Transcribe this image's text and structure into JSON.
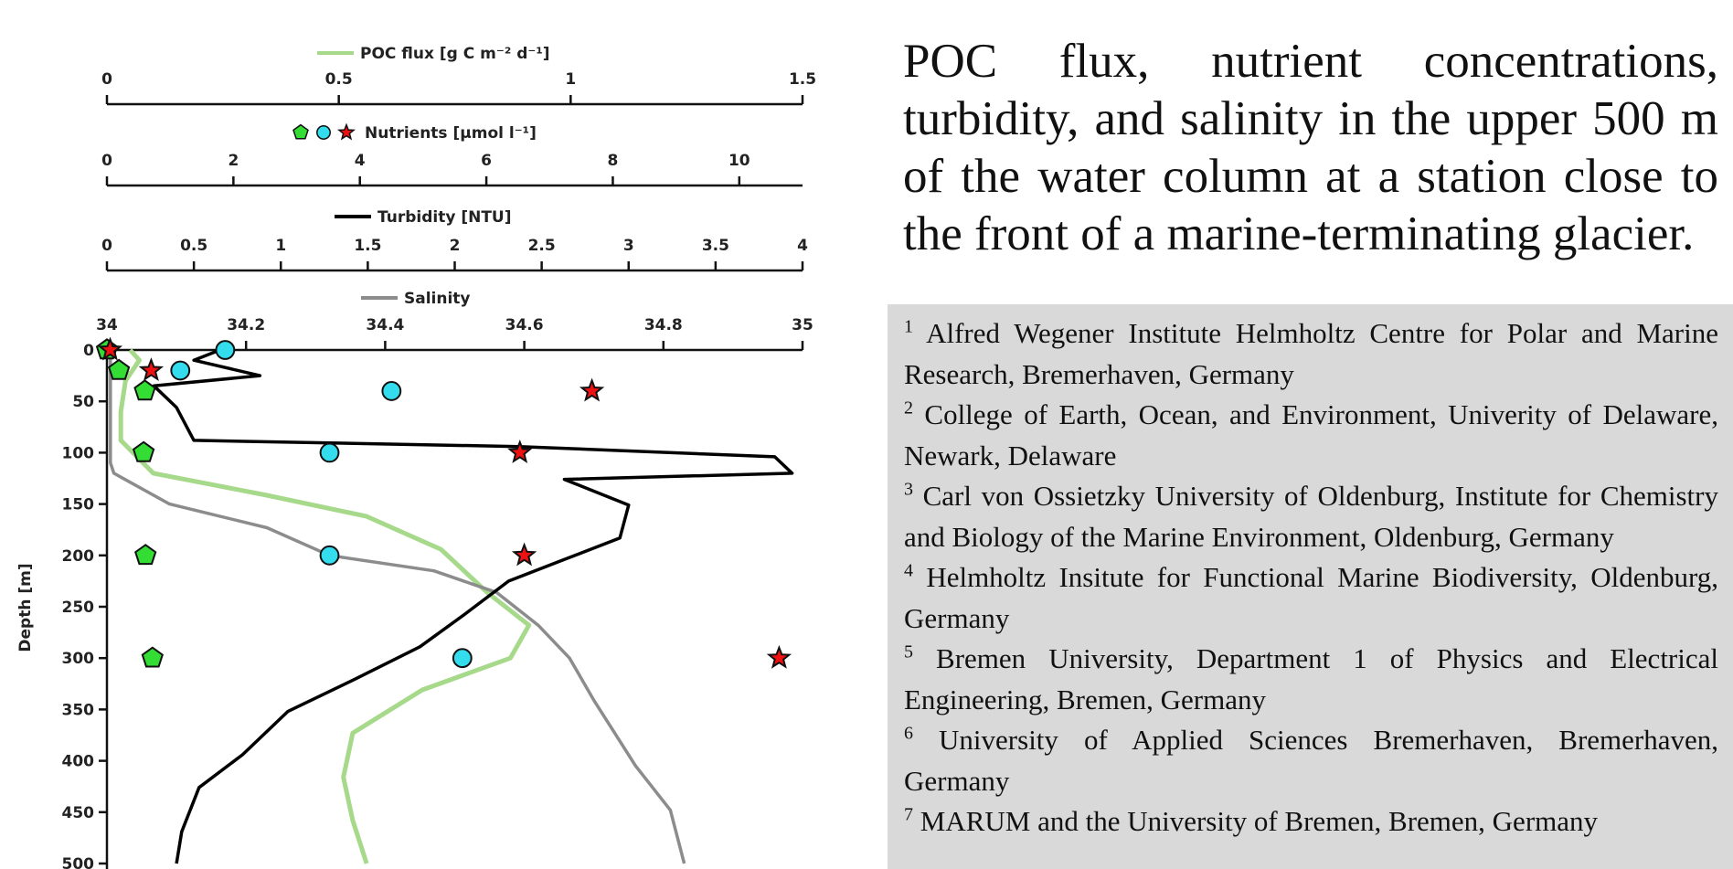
{
  "chart_data": {
    "type": "profile",
    "ylabel": "Depth [m]",
    "ylim": [
      0,
      500
    ],
    "yticks": [
      0,
      50,
      100,
      150,
      200,
      250,
      300,
      350,
      400,
      450,
      500
    ],
    "axes": [
      {
        "name": "POC flux [g C m⁻² d⁻¹]",
        "xlim": [
          0,
          1.5
        ],
        "xticks": [
          0,
          0.5,
          1,
          1.5
        ]
      },
      {
        "name": "Nutrients [µmol l⁻¹]",
        "xlim": [
          0,
          11
        ],
        "xticks": [
          0,
          2,
          4,
          6,
          8,
          10
        ]
      },
      {
        "name": "Turbidity [NTU]",
        "xlim": [
          0,
          4
        ],
        "xticks": [
          0,
          0.5,
          1,
          1.5,
          2,
          2.5,
          3,
          3.5,
          4
        ]
      },
      {
        "name": "Salinity",
        "xlim": [
          34,
          35
        ],
        "xticks": [
          34,
          34.2,
          34.4,
          34.6,
          34.8,
          35
        ]
      }
    ],
    "series": [
      {
        "axis": 0,
        "color": "#a6d98a",
        "depth": [
          0,
          10,
          30,
          60,
          88,
          120,
          141,
          162,
          194,
          236,
          268,
          300,
          331,
          373,
          416,
          458,
          500
        ],
        "values": [
          0.05,
          0.07,
          0.04,
          0.03,
          0.03,
          0.1,
          0.34,
          0.56,
          0.72,
          0.82,
          0.91,
          0.87,
          0.68,
          0.53,
          0.51,
          0.53,
          0.56
        ]
      },
      {
        "axis": 3,
        "color": "#8c8c8c",
        "depth": [
          0,
          110,
          120,
          150,
          173,
          200,
          215,
          236,
          268,
          300,
          341,
          405,
          448,
          500
        ],
        "values": [
          34.005,
          34.005,
          34.01,
          34.09,
          34.23,
          34.32,
          34.47,
          34.56,
          34.62,
          34.665,
          34.7,
          34.76,
          34.81,
          34.83
        ]
      },
      {
        "axis": 2,
        "color": "#000000",
        "depth": [
          0,
          10,
          25,
          35,
          56,
          88,
          94,
          104,
          120,
          126,
          151,
          183,
          204,
          225,
          257,
          289,
          321,
          352,
          394,
          426,
          469,
          500
        ],
        "values": [
          0.65,
          0.5,
          0.88,
          0.27,
          0.4,
          0.5,
          2.37,
          3.84,
          3.94,
          2.63,
          3.0,
          2.95,
          2.63,
          2.31,
          2.06,
          1.8,
          1.42,
          1.04,
          0.78,
          0.53,
          0.43,
          0.4
        ]
      },
      {
        "axis": 1,
        "marker": "pentagon",
        "color": "#33dd33",
        "depth": [
          0,
          20,
          40,
          100,
          200,
          300
        ],
        "values": [
          0,
          0.19,
          0.6,
          0.58,
          0.61,
          0.72
        ]
      },
      {
        "axis": 1,
        "marker": "circle",
        "color": "#33ddee",
        "depth": [
          0,
          20,
          40,
          100,
          200,
          300
        ],
        "values": [
          1.87,
          1.16,
          4.5,
          3.52,
          3.52,
          5.62
        ]
      },
      {
        "axis": 1,
        "marker": "star",
        "color": "#ee1111",
        "depth": [
          0,
          20,
          40,
          100,
          200,
          300
        ],
        "values": [
          0.05,
          0.7,
          7.67,
          6.53,
          6.6,
          10.63
        ]
      }
    ]
  },
  "heading": "POC flux, nutrient concentrations, turbidity, and salinity in the upper 500 m of the water column at a station close to the front of a marine-terminating glacier.",
  "affiliations": [
    {
      "number": "1",
      "text": "Alfred Wegener Institute Helmholtz Centre for Polar and Marine Research, Bremerhaven, Germany"
    },
    {
      "number": "2",
      "text": "College of Earth, Ocean, and Environment, Univerity of Delaware, Newark, Delaware"
    },
    {
      "number": "3",
      "text": "Carl von Ossietzky University of Oldenburg, Institute for Chemistry and Biology of the Marine Environment, Oldenburg, Germany"
    },
    {
      "number": "4",
      "text": "Helmholtz Insitute for Functional Marine Biodiversity, Oldenburg, Germany"
    },
    {
      "number": "5",
      "text": "Bremen University, Department 1 of Physics and Electrical Engineering, Bremen, Germany"
    },
    {
      "number": "6",
      "text": "University of Applied Sciences Bremerhaven, Bremerhaven, Germany"
    },
    {
      "number": "7",
      "text": "MARUM and the University of Bremen, Bremen, Germany"
    }
  ]
}
